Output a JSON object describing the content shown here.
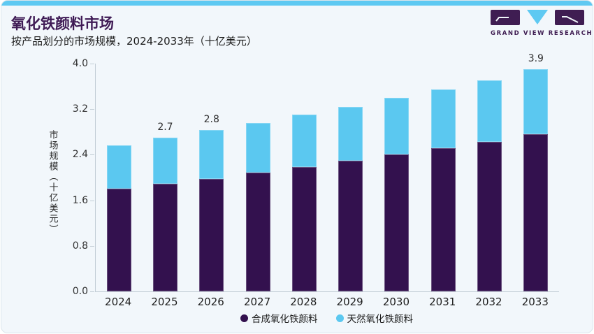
{
  "header": {
    "title": "氧化铁颜料市场",
    "subtitle": "按产品划分的市场规模，2024-2033年（十亿美元）",
    "logo_text": "GRAND VIEW RESEARCH"
  },
  "colors": {
    "synthetic_purple": "#33114e",
    "natural_blue": "#5bc8f0",
    "title_purple": "#3f1b55",
    "accent_strip_blue": "#5ec9f2",
    "axis_gray": "#c3ced6",
    "card_background": "#f2f7fb"
  },
  "chart_data": {
    "type": "bar",
    "stacked": true,
    "title": "氧化铁颜料市场",
    "subtitle": "按产品划分的市场规模，2024-2033年（十亿美元）",
    "categories": [
      "2024",
      "2025",
      "2026",
      "2027",
      "2028",
      "2029",
      "2030",
      "2031",
      "2032",
      "2033"
    ],
    "series": [
      {
        "name": "合成氧化铁颜料",
        "color": "#33114e",
        "values": [
          1.81,
          1.89,
          1.97,
          2.08,
          2.18,
          2.29,
          2.4,
          2.51,
          2.63,
          2.76
        ]
      },
      {
        "name": "天然氧化铁颜料",
        "color": "#5bc8f0",
        "values": [
          0.76,
          0.81,
          0.86,
          0.88,
          0.92,
          0.95,
          1.0,
          1.04,
          1.08,
          1.14
        ]
      }
    ],
    "totals": [
      2.57,
      2.7,
      2.83,
      2.96,
      3.1,
      3.24,
      3.4,
      3.55,
      3.71,
      3.9
    ],
    "total_labels": [
      "",
      "2.7",
      "2.8",
      "",
      "",
      "",
      "",
      "",
      "",
      "3.9"
    ],
    "ylabel": "市场规模（十亿美元）",
    "yticks": [
      0.0,
      0.8,
      1.6,
      2.4,
      3.2,
      4.0
    ],
    "ytick_labels": [
      "0.0",
      "0.8",
      "1.6",
      "2.4",
      "3.2",
      "4.0"
    ],
    "ylim": [
      0,
      4.0
    ],
    "grid": false,
    "legend_position": "bottom-center"
  },
  "legend": {
    "items": [
      {
        "label": "合成氧化铁颜料",
        "color": "#33114e"
      },
      {
        "label": "天然氧化铁颜料",
        "color": "#5bc8f0"
      }
    ]
  }
}
